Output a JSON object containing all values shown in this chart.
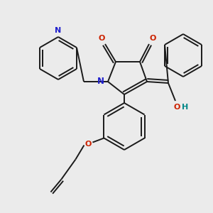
{
  "bg_color": "#ebebeb",
  "bond_color": "#1a1a1a",
  "N_color": "#2020cc",
  "O_color": "#cc2200",
  "OH_color": "#008888",
  "lw": 1.4,
  "fig_w": 3.0,
  "fig_h": 3.0,
  "dpi": 100,
  "xlim": [
    0,
    300
  ],
  "ylim": [
    0,
    300
  ]
}
